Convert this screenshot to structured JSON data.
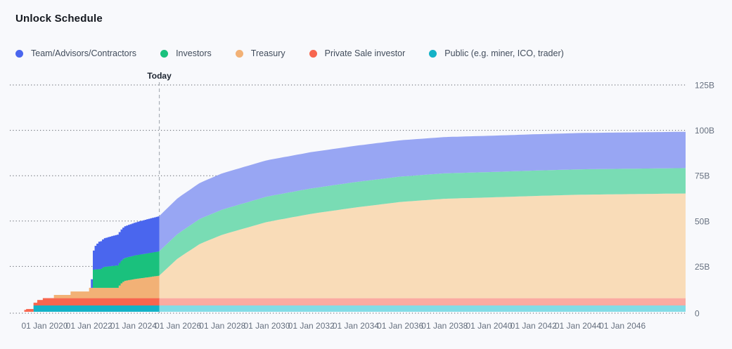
{
  "header": {
    "title": "Unlock Schedule"
  },
  "legend": {
    "items": [
      {
        "label": "Team/Advisors/Contractors",
        "color": "#4a66ee"
      },
      {
        "label": "Investors",
        "color": "#1ac17d"
      },
      {
        "label": "Treasury",
        "color": "#f2b176"
      },
      {
        "label": "Private Sale investor",
        "color": "#f7664f"
      },
      {
        "label": "Public (e.g. miner, ICO, trader)",
        "color": "#14b2c7"
      }
    ]
  },
  "chart": {
    "today_label": "Today"
  },
  "chart_data": {
    "type": "area",
    "stacked": true,
    "title": "Unlock Schedule",
    "unit": "billions of tokens",
    "grid": "horizontal-dotted",
    "legend_position": "top",
    "y_axis": {
      "tick_labels": [
        "0",
        "25B",
        "50B",
        "75B",
        "100B",
        "125B"
      ],
      "tick_values": [
        0,
        25,
        50,
        75,
        100,
        125
      ],
      "min": 0,
      "max": 125
    },
    "x_axis": {
      "tick_labels": [
        "01 Jan 2020",
        "01 Jan 2022",
        "01 Jan 2024",
        "01 Jan 2026",
        "01 Jan 2028",
        "01 Jan 2030",
        "01 Jan 2032",
        "01 Jan 2034",
        "01 Jan 2036",
        "01 Jan 2038",
        "01 Jan 2040",
        "01 Jan 2042",
        "01 Jan 2044",
        "01 Jan 2046"
      ],
      "tick_years": [
        2020,
        2022,
        2024,
        2026,
        2028,
        2030,
        2032,
        2034,
        2036,
        2038,
        2040,
        2042,
        2044,
        2046
      ],
      "start_year": 2019.0,
      "end_year": 2048.85
    },
    "today": {
      "label": "Today",
      "year": 2025.16
    },
    "series": [
      {
        "name": "Public (e.g. miner, ICO, trader)",
        "color": "#14b2c7",
        "color_future": "#83dce6",
        "points": [
          [
            2019.45,
            0
          ],
          [
            2019.5,
            3.5
          ],
          [
            2048.85,
            3.5
          ]
        ]
      },
      {
        "name": "Private Sale investor",
        "color": "#f7664f",
        "color_future": "#fbaba1",
        "points": [
          [
            2019.05,
            0
          ],
          [
            2019.1,
            1.5
          ],
          [
            2019.6,
            1.5
          ],
          [
            2019.65,
            3
          ],
          [
            2019.85,
            3
          ],
          [
            2019.9,
            4
          ],
          [
            2048.85,
            4
          ]
        ]
      },
      {
        "name": "Treasury",
        "color": "#f2b176",
        "color_future": "#f9dcb8",
        "points": [
          [
            2020.35,
            0
          ],
          [
            2020.4,
            1.8
          ],
          [
            2021.1,
            1.8
          ],
          [
            2021.15,
            3.7
          ],
          [
            2021.95,
            3.7
          ],
          [
            2022.0,
            5.7
          ],
          [
            2023.25,
            5.7
          ],
          [
            2023.4,
            8
          ],
          [
            2023.55,
            9.5
          ],
          [
            2024.1,
            10.7
          ],
          [
            2024.6,
            11.5
          ],
          [
            2025.16,
            12.5
          ],
          [
            2026,
            22
          ],
          [
            2027,
            30
          ],
          [
            2028,
            35
          ],
          [
            2030,
            42
          ],
          [
            2032,
            46.5
          ],
          [
            2034,
            50
          ],
          [
            2036,
            53
          ],
          [
            2038,
            54.8
          ],
          [
            2040,
            55.5
          ],
          [
            2042,
            56.3
          ],
          [
            2044,
            57
          ],
          [
            2046,
            57.3
          ],
          [
            2048.85,
            57.7
          ]
        ]
      },
      {
        "name": "Investors",
        "color": "#1ac17d",
        "color_future": "#79dcb4",
        "points": [
          [
            2022.1,
            0
          ],
          [
            2022.15,
            10
          ],
          [
            2022.55,
            10.5
          ],
          [
            2022.6,
            11.5
          ],
          [
            2023.2,
            12.3
          ],
          [
            2024.0,
            13
          ],
          [
            2025.16,
            13.4
          ],
          [
            2027,
            13.8
          ],
          [
            2030,
            14
          ],
          [
            2048.85,
            14
          ]
        ]
      },
      {
        "name": "Team/Advisors/Contractors",
        "color": "#4a66ee",
        "color_future": "#98a6f3",
        "points": [
          [
            2022.05,
            0
          ],
          [
            2022.1,
            7
          ],
          [
            2022.15,
            10
          ],
          [
            2022.25,
            13
          ],
          [
            2022.4,
            15
          ],
          [
            2022.7,
            15.8
          ],
          [
            2023.0,
            16.5
          ],
          [
            2023.5,
            17.3
          ],
          [
            2024.0,
            18
          ],
          [
            2024.5,
            18.7
          ],
          [
            2025.16,
            19.4
          ],
          [
            2026,
            19.7
          ],
          [
            2028,
            20
          ],
          [
            2048.85,
            20
          ]
        ]
      }
    ]
  }
}
